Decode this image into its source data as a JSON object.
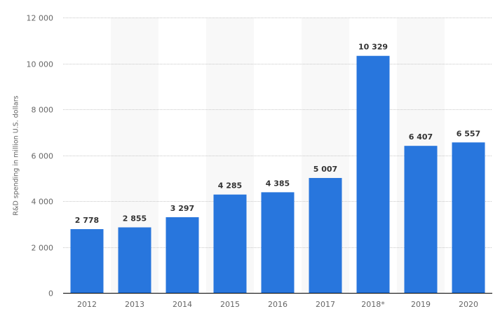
{
  "chart_data": {
    "type": "bar",
    "title": "",
    "xlabel": "",
    "ylabel": "R&D spending in million U.S. dollars",
    "categories": [
      "2012",
      "2013",
      "2014",
      "2015",
      "2016",
      "2017",
      "2018*",
      "2019",
      "2020"
    ],
    "values": [
      2778,
      2855,
      3297,
      4285,
      4385,
      5007,
      10329,
      6407,
      6557
    ],
    "value_labels": [
      "2 778",
      "2 855",
      "3 297",
      "4 285",
      "4 385",
      "5 007",
      "10 329",
      "6 407",
      "6 557"
    ],
    "ylim": [
      0,
      12000
    ],
    "yticks": [
      0,
      2000,
      4000,
      6000,
      8000,
      10000,
      12000
    ],
    "ytick_labels": [
      "0",
      "2 000",
      "4 000",
      "6 000",
      "8 000",
      "10 000",
      "12 000"
    ],
    "grid": true,
    "legend": null,
    "colors": {
      "bar": "#2876dd",
      "band": "#f8f8f8",
      "grid": "#c8c8c8",
      "axis": "#000000",
      "tick_text": "#666666",
      "value_text": "#333333"
    }
  }
}
